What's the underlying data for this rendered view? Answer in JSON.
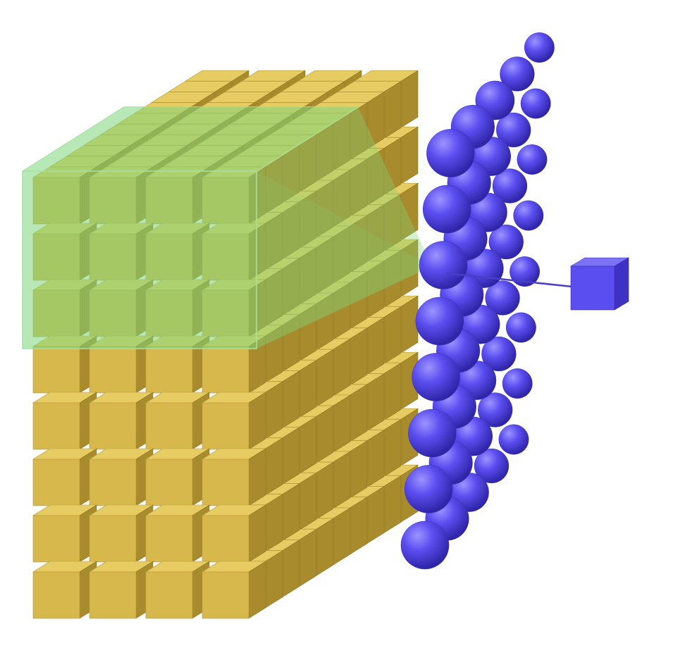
{
  "diagram": {
    "input_volume": {
      "kind": "grid-of-cubes",
      "rows": 8,
      "columns": 4,
      "depth": 10,
      "color": "#d6b84c",
      "color_top": "#e6cc62",
      "color_side": "#a88b2c"
    },
    "receptive_field": {
      "rows": 3,
      "columns": 4,
      "color": "#7ed67a",
      "opacity": 0.55
    },
    "neuron_layer": {
      "kind": "grid-of-spheres",
      "rows": 8,
      "columns": 5,
      "color": "#5b4ef0"
    },
    "output_unit": {
      "kind": "cube",
      "color": "#5b4ef0"
    },
    "colors": {
      "background": "#ffffff",
      "connector": "#4a3fc4"
    }
  }
}
